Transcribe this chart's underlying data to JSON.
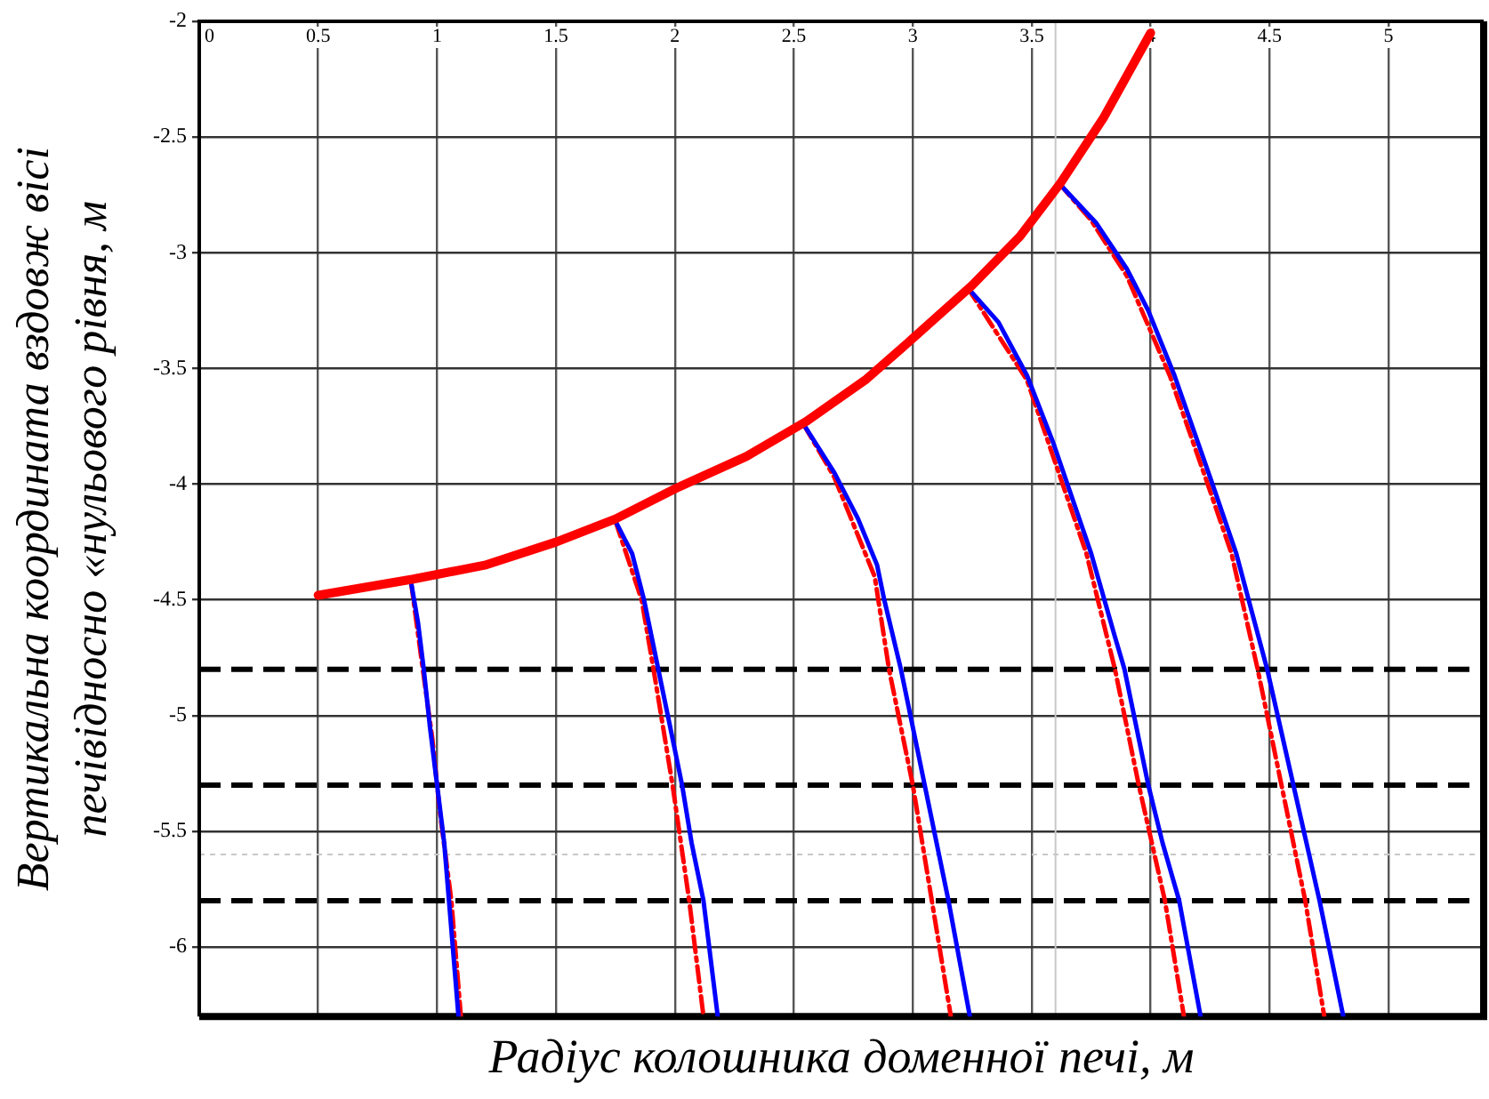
{
  "chart_data": {
    "type": "line",
    "xlabel": "Радіус колошника доменної печі, м",
    "ylabel": "Вертикальна координата вздовж вісі\nпечівідносно «нульового рівня, м",
    "xlim": [
      0,
      5.4
    ],
    "xticks": [
      0,
      0.5,
      1,
      1.5,
      2,
      2.5,
      3,
      3.5,
      4,
      4.5,
      5
    ],
    "ylim": [
      -6.3,
      -2
    ],
    "yticks": [
      -2,
      -2.5,
      -3,
      -3.5,
      -4,
      -4.5,
      -5,
      -5.5,
      -6
    ],
    "grid": true,
    "legend": false,
    "marker": "none",
    "series": [
      {
        "color": "#ff0000",
        "line_style": "solid",
        "x": [
          0.5,
          0.9,
          1.2,
          1.5,
          1.75,
          2.0,
          2.3,
          2.55,
          2.8,
          3.0,
          3.25,
          3.45,
          3.62,
          3.8,
          4.0
        ],
        "values": [
          -4.48,
          -4.41,
          -4.35,
          -4.25,
          -4.15,
          -4.02,
          -3.88,
          -3.73,
          -3.55,
          -3.37,
          -3.14,
          -2.93,
          -2.7,
          -2.42,
          -2.05
        ]
      },
      {
        "color": "#0000ff",
        "line_style": "solid",
        "x": [
          0.89,
          0.92,
          0.944,
          0.97,
          1.0,
          1.03,
          1.05,
          1.07,
          1.09
        ],
        "values": [
          -4.42,
          -4.6,
          -4.8,
          -5.05,
          -5.3,
          -5.55,
          -5.8,
          -6.05,
          -6.3
        ]
      },
      {
        "color": "#ff0000",
        "line_style": "dashed",
        "x": [
          0.89,
          0.94,
          0.98,
          1.01,
          1.06,
          1.1
        ],
        "values": [
          -4.42,
          -4.8,
          -5.1,
          -5.4,
          -5.8,
          -6.3
        ]
      },
      {
        "color": "#0000ff",
        "line_style": "solid",
        "x": [
          1.75,
          1.82,
          1.87,
          1.93,
          1.97,
          2.03,
          2.07,
          2.12,
          2.18
        ],
        "values": [
          -4.16,
          -4.3,
          -4.5,
          -4.8,
          -5.0,
          -5.3,
          -5.55,
          -5.8,
          -6.3
        ]
      },
      {
        "color": "#ff0000",
        "line_style": "dashed",
        "x": [
          1.75,
          1.86,
          1.91,
          1.99,
          2.06,
          2.12
        ],
        "values": [
          -4.16,
          -4.5,
          -4.8,
          -5.3,
          -5.8,
          -6.3
        ]
      },
      {
        "color": "#0000ff",
        "line_style": "solid",
        "x": [
          2.54,
          2.67,
          2.77,
          2.85,
          2.88,
          2.95,
          2.99,
          3.05,
          3.15,
          3.24
        ],
        "values": [
          -3.74,
          -3.95,
          -4.15,
          -4.35,
          -4.5,
          -4.8,
          -5.0,
          -5.3,
          -5.8,
          -6.3
        ]
      },
      {
        "color": "#ff0000",
        "line_style": "dashed",
        "x": [
          2.54,
          2.67,
          2.84,
          2.9,
          3.0,
          3.08,
          3.16
        ],
        "values": [
          -3.74,
          -3.97,
          -4.4,
          -4.8,
          -5.3,
          -5.8,
          -6.3
        ]
      },
      {
        "color": "#0000ff",
        "line_style": "solid",
        "x": [
          3.23,
          3.36,
          3.48,
          3.59,
          3.65,
          3.75,
          3.85,
          3.89,
          3.99,
          4.05,
          4.12,
          4.21
        ],
        "values": [
          -3.15,
          -3.3,
          -3.53,
          -3.82,
          -4.0,
          -4.3,
          -4.66,
          -4.8,
          -5.3,
          -5.55,
          -5.8,
          -6.3
        ]
      },
      {
        "color": "#ff0000",
        "line_style": "dashed",
        "x": [
          3.23,
          3.48,
          3.63,
          3.73,
          3.85,
          3.95,
          4.06,
          4.14
        ],
        "values": [
          -3.15,
          -3.55,
          -4.0,
          -4.3,
          -4.8,
          -5.3,
          -5.8,
          -6.3
        ]
      },
      {
        "color": "#0000ff",
        "line_style": "solid",
        "x": [
          3.615,
          3.77,
          3.9,
          3.99,
          4.1,
          4.26,
          4.36,
          4.49,
          4.6,
          4.71,
          4.81
        ],
        "values": [
          -2.7,
          -2.87,
          -3.07,
          -3.25,
          -3.53,
          -4.0,
          -4.3,
          -4.8,
          -5.3,
          -5.8,
          -6.3
        ]
      },
      {
        "color": "#ff0000",
        "line_style": "dashed",
        "x": [
          3.615,
          3.75,
          3.9,
          4.08,
          4.24,
          4.34,
          4.45,
          4.55,
          4.65,
          4.73
        ],
        "values": [
          -2.7,
          -2.86,
          -3.1,
          -3.53,
          -4.0,
          -4.3,
          -4.8,
          -5.3,
          -5.8,
          -6.3
        ]
      }
    ],
    "ref_lines": [
      {
        "axis": "y",
        "value": -4.8,
        "color": "#000000",
        "line_style": "dashed"
      },
      {
        "axis": "y",
        "value": -5.3,
        "color": "#000000",
        "line_style": "dashed"
      },
      {
        "axis": "y",
        "value": -5.8,
        "color": "#000000",
        "line_style": "dashed"
      },
      {
        "axis": "x",
        "value": 3.6,
        "color": "#c8c8c8",
        "line_style": "solid"
      },
      {
        "axis": "y",
        "value": -5.6,
        "color": "#c8c8c8",
        "line_style": "dotted"
      }
    ]
  }
}
